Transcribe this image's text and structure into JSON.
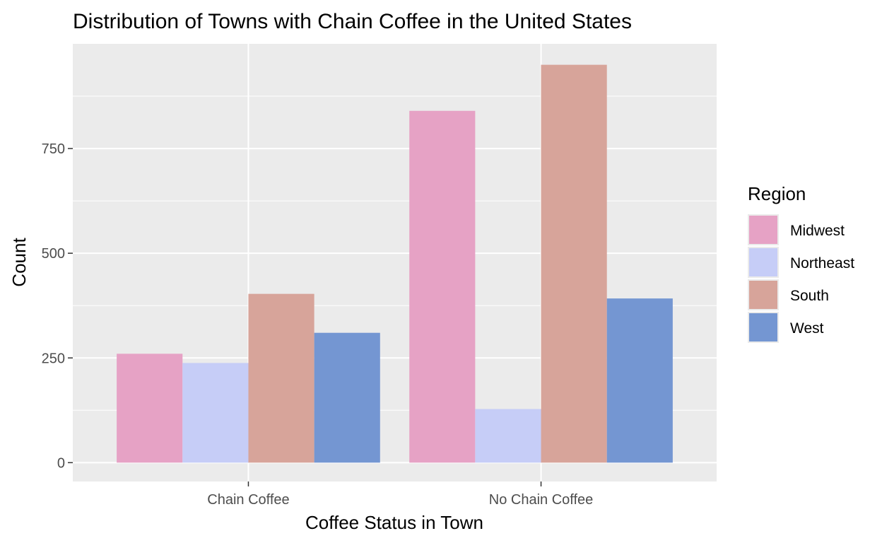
{
  "chart_data": {
    "type": "bar",
    "title": "Distribution of Towns with Chain Coffee in the United States",
    "xlabel": "Coffee Status in Town",
    "ylabel": "Count",
    "categories": [
      "Chain Coffee",
      "No Chain Coffee"
    ],
    "series": [
      {
        "name": "Midwest",
        "color": "#e6a2c5",
        "values": [
          260,
          840
        ]
      },
      {
        "name": "Northeast",
        "color": "#c6cdf7",
        "values": [
          238,
          128
        ]
      },
      {
        "name": "South",
        "color": "#d7a49a",
        "values": [
          403,
          950
        ]
      },
      {
        "name": "West",
        "color": "#7496d2",
        "values": [
          310,
          392
        ]
      }
    ],
    "ylim": [
      -45,
      1000
    ],
    "y_ticks": [
      0,
      250,
      500,
      750
    ],
    "y_tick_labels": [
      "0",
      "250",
      "500",
      "750"
    ],
    "grid": true,
    "legend": {
      "title": "Region",
      "position": "right"
    },
    "panel_background": "#ebebeb"
  }
}
